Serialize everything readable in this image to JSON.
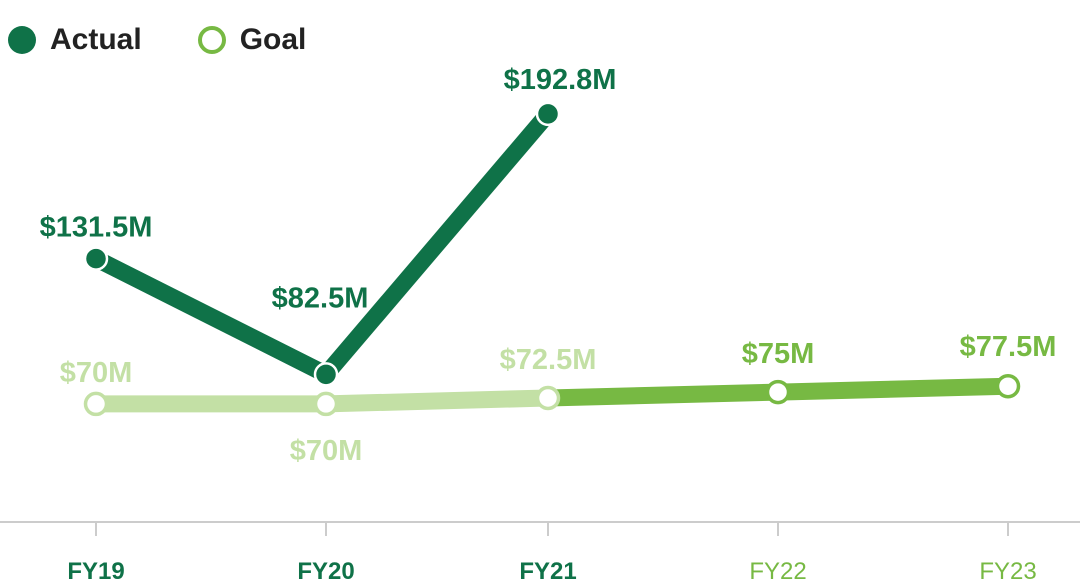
{
  "chart_data": {
    "type": "line",
    "categories": [
      "FY19",
      "FY20",
      "FY21",
      "FY22",
      "FY23"
    ],
    "series": [
      {
        "name": "Actual",
        "values": [
          131.5,
          82.5,
          192.8,
          null,
          null
        ],
        "labels": [
          "$131.5M",
          "$82.5M",
          "$192.8M",
          null,
          null
        ],
        "color": "#0f7248"
      },
      {
        "name": "Goal",
        "values": [
          70,
          70,
          72.5,
          75,
          77.5
        ],
        "labels": [
          "$70M",
          "$70M",
          "$72.5M",
          "$75M",
          "$77.5M"
        ],
        "color_past": "#c3e0a5",
        "color_future": "#77b943"
      }
    ],
    "ylim": [
      20,
      230
    ],
    "grid": false,
    "legend_position": "top-left",
    "tick_colors": [
      "#0f7248",
      "#0f7248",
      "#0f7248",
      "#77b943",
      "#77b943"
    ]
  }
}
